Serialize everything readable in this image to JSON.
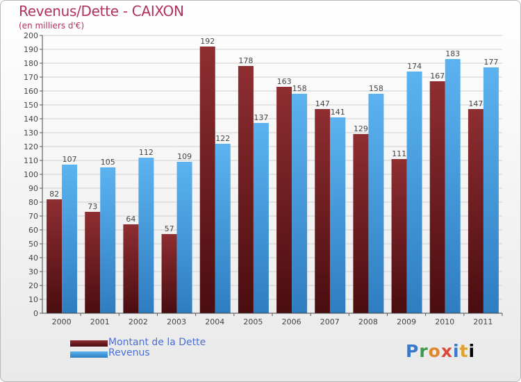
{
  "title": "Revenus/Dette - CAIXON",
  "subtitle": "(en milliers d'€)",
  "legend": [
    "Montant de la Dette",
    "Revenus"
  ],
  "logo_text": "Proxiti",
  "colors": {
    "dette": "#7a1f22",
    "revenus": "#4aa3e6",
    "title": "#b0315c"
  },
  "chart_data": {
    "type": "bar",
    "categories": [
      "2000",
      "2001",
      "2002",
      "2003",
      "2004",
      "2005",
      "2006",
      "2007",
      "2008",
      "2009",
      "2010",
      "2011"
    ],
    "series": [
      {
        "name": "Montant de la Dette",
        "values": [
          82,
          73,
          64,
          57,
          192,
          178,
          163,
          147,
          129,
          111,
          167,
          147
        ]
      },
      {
        "name": "Revenus",
        "values": [
          107,
          105,
          112,
          109,
          122,
          137,
          158,
          141,
          158,
          174,
          183,
          177
        ]
      }
    ],
    "ylim": [
      0,
      200
    ],
    "yticks": [
      0,
      10,
      20,
      30,
      40,
      50,
      60,
      70,
      80,
      90,
      100,
      110,
      120,
      130,
      140,
      150,
      160,
      170,
      180,
      190,
      200
    ],
    "grid": true,
    "legend_position": "bottom-left"
  }
}
